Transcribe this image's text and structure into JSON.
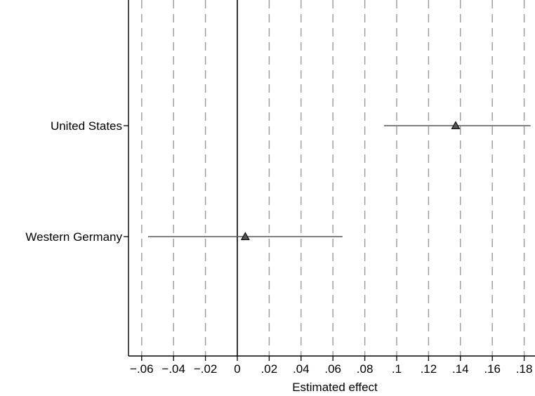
{
  "chart_data": {
    "type": "scatter",
    "subtype": "coefficient-plot",
    "title": "",
    "xlabel": "Estimated effect",
    "ylabel": "",
    "xlim": [
      -0.065,
      0.185
    ],
    "x_ticks": [
      -0.06,
      -0.04,
      -0.02,
      0,
      0.02,
      0.04,
      0.06,
      0.08,
      0.1,
      0.12,
      0.14,
      0.16,
      0.18
    ],
    "x_tick_labels": [
      "−.06",
      "−.04",
      "−.02",
      "0",
      ".02",
      ".04",
      ".06",
      ".08",
      ".1",
      ".12",
      ".14",
      ".16",
      ".18"
    ],
    "grid": "vertical-dashed",
    "reference_line": 0,
    "marker": "triangle",
    "categories": [
      "United States",
      "Western Germany"
    ],
    "estimates": [
      {
        "label": "United States",
        "value": 0.137,
        "ci_low": 0.092,
        "ci_high": 0.184
      },
      {
        "label": "Western Germany",
        "value": 0.005,
        "ci_low": -0.056,
        "ci_high": 0.066
      }
    ]
  }
}
